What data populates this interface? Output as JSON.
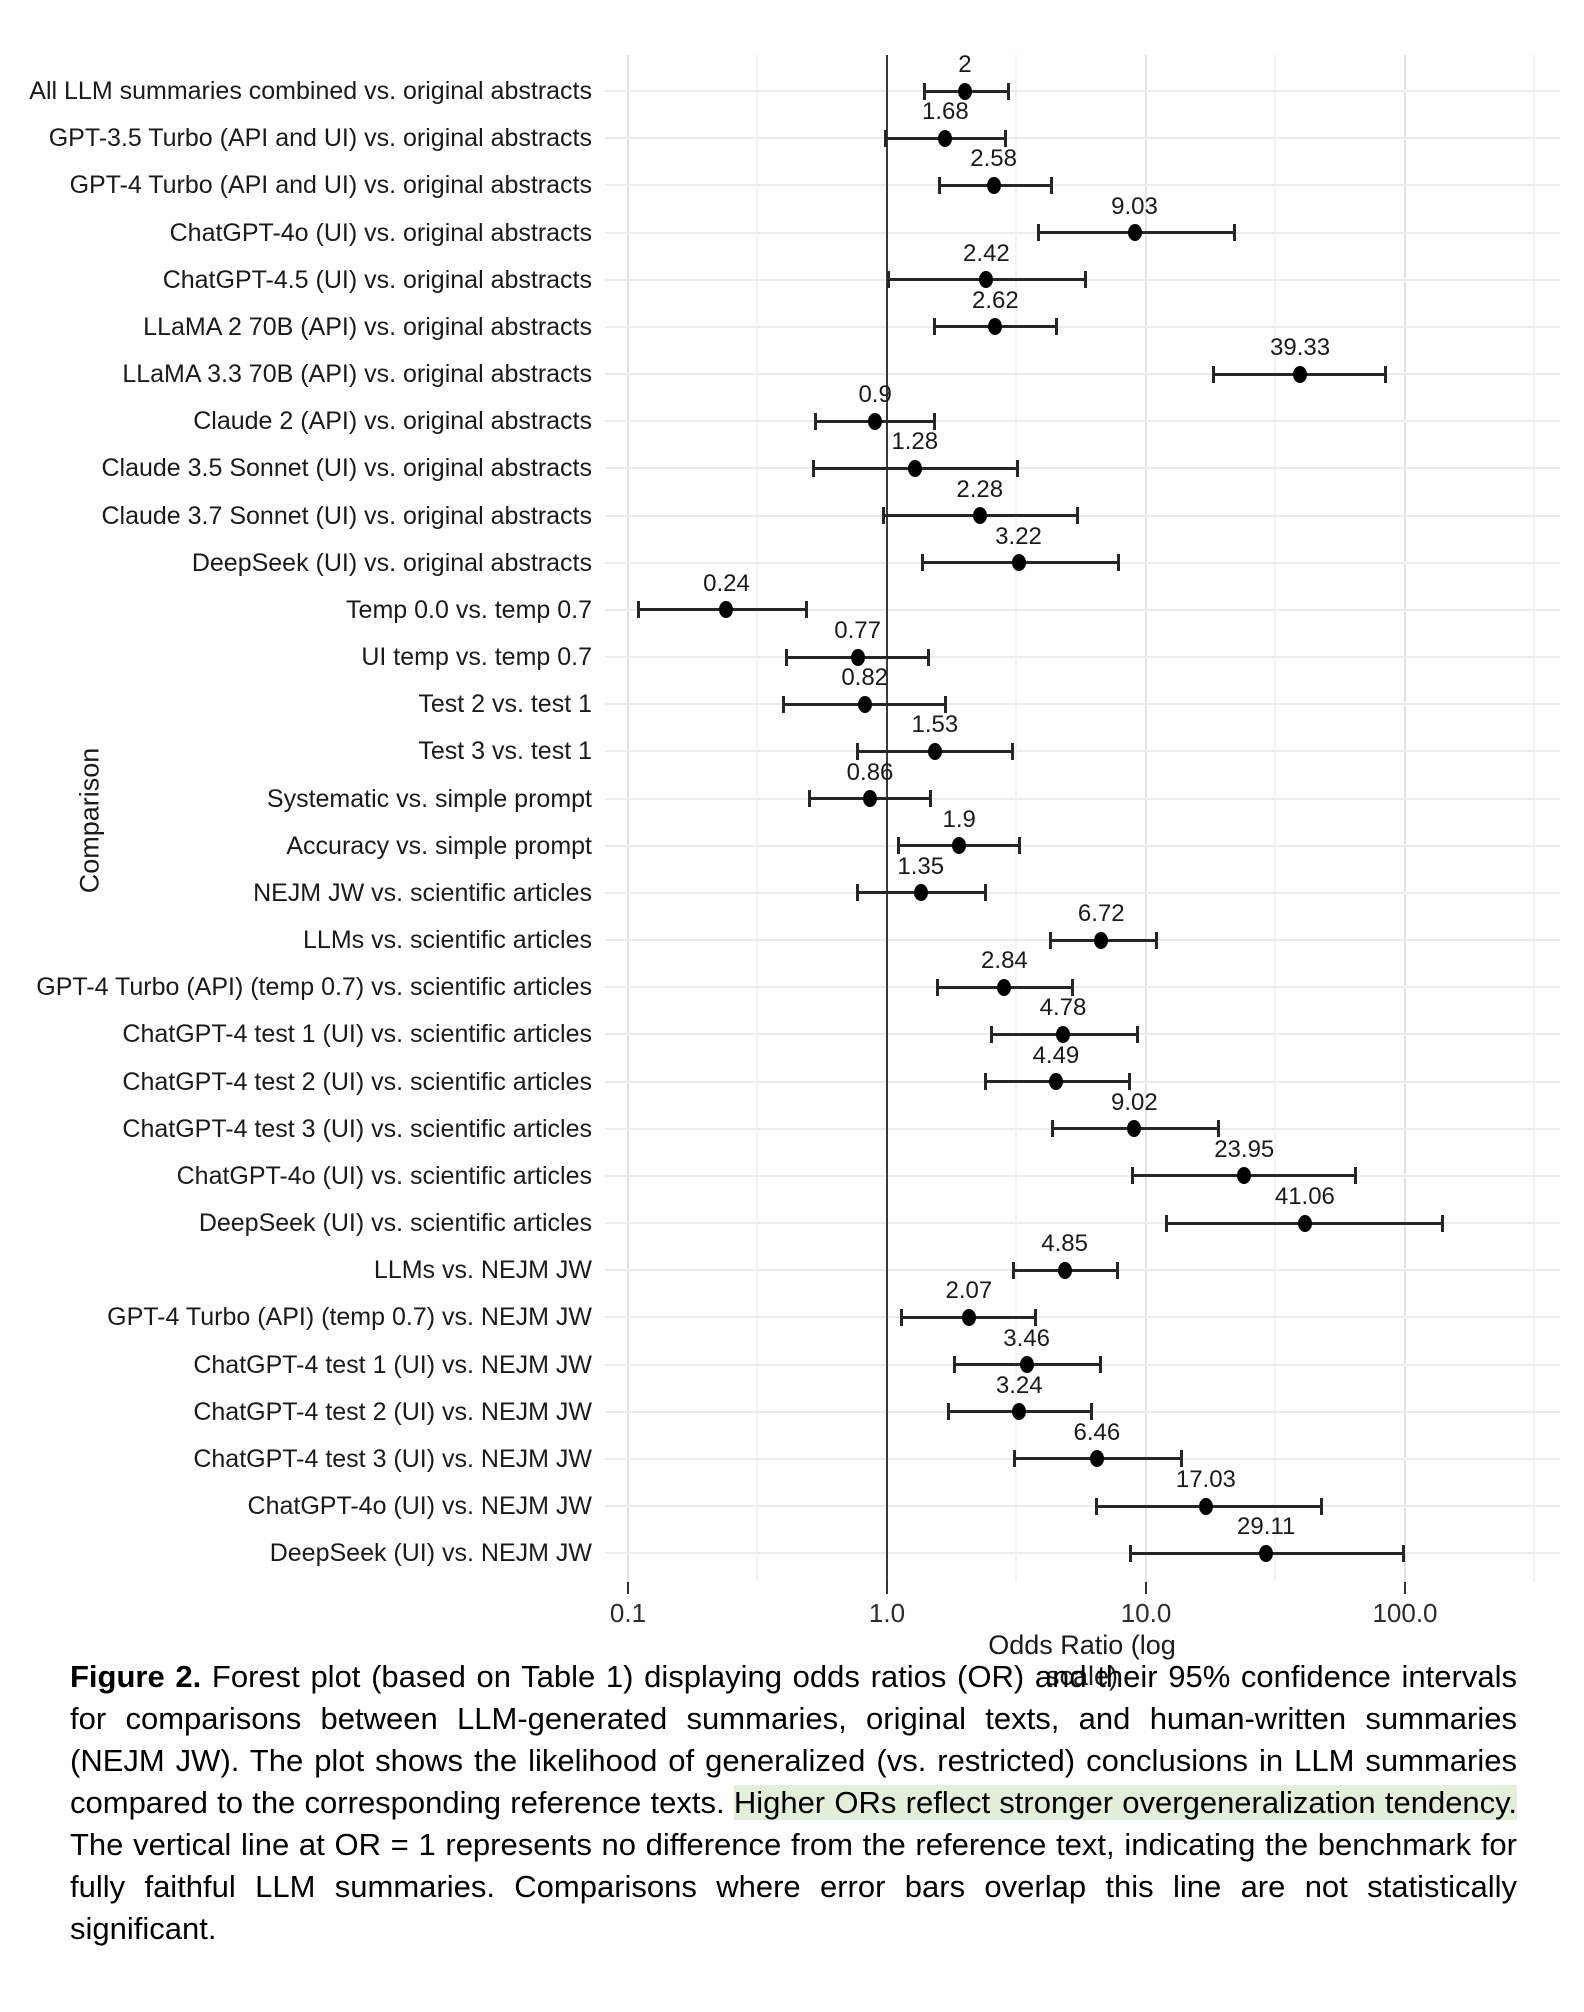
{
  "figure": {
    "caption": {
      "label": "Figure 2.",
      "text_before_highlight": " Forest plot (based on Table 1) displaying odds ratios (OR) and their 95% confidence intervals for comparisons between LLM-generated summaries, original texts, and human-written summaries (NEJM JW). The plot shows the likelihood of generalized (vs. restricted) conclusions in LLM summaries compared to the corresponding reference texts. ",
      "highlighted_text": "Higher ORs reflect stronger overgeneralization tendency.",
      "text_after_highlight": " The vertical line at OR = 1 represents no difference from the reference text, indicating the benchmark for fully faithful LLM summaries. Comparisons where error bars overlap this line are not statistically significant.",
      "highlight_color": "#e2efda"
    }
  },
  "chart_data": {
    "type": "scatter",
    "subtype": "forest-plot-with-horizontal-error-bars",
    "title": "",
    "xlabel": "Odds Ratio (log scale)",
    "ylabel": "Comparison",
    "x_scale": "log10",
    "x_ticks_labels": [
      "0.1",
      "1.0",
      "10.0",
      "100.0"
    ],
    "x_ticks_values": [
      0.1,
      1,
      10,
      100
    ],
    "x_minor_gridlines": [
      0.316,
      3.16,
      31.6,
      316
    ],
    "xlim": [
      0.08,
      400
    ],
    "reference_line_at": 1,
    "grid": "horizontal line per row; vertical major gridlines at decades with log-minor gridlines",
    "legend": "none",
    "colors": {
      "point": "#000000",
      "error_bar": "#262626",
      "reference_line": "#3a3a3a",
      "major_gridline": "#e3e3e3",
      "minor_gridline": "#f2f2f2",
      "row_gridline": "#ececec"
    },
    "rows": [
      {
        "label": "All LLM summaries combined vs. original abstracts",
        "or_label": "2",
        "or": 2,
        "ci_low": 1.39,
        "ci_high": 2.94
      },
      {
        "label": "GPT-3.5 Turbo (API and UI) vs. original abstracts",
        "or_label": "1.68",
        "or": 1.68,
        "ci_low": 0.99,
        "ci_high": 2.88
      },
      {
        "label": "GPT-4 Turbo (API and UI) vs. original abstracts",
        "or_label": "2.58",
        "or": 2.58,
        "ci_low": 1.59,
        "ci_high": 4.3
      },
      {
        "label": "ChatGPT-4o (UI) vs. original abstracts",
        "or_label": "9.03",
        "or": 9.03,
        "ci_low": 3.85,
        "ci_high": 21.9
      },
      {
        "label": "ChatGPT-4.5 (UI) vs. original abstracts",
        "or_label": "2.42",
        "or": 2.42,
        "ci_low": 1.01,
        "ci_high": 5.83
      },
      {
        "label": "LLaMA 2 70B (API) vs. original abstracts",
        "or_label": "2.62",
        "or": 2.62,
        "ci_low": 1.53,
        "ci_high": 4.53
      },
      {
        "label": "LLaMA 3.3 70B (API) vs. original abstracts",
        "or_label": "39.33",
        "or": 39.33,
        "ci_low": 18.3,
        "ci_high": 84.3
      },
      {
        "label": "Claude 2 (API) vs. original abstracts",
        "or_label": "0.9",
        "or": 0.9,
        "ci_low": 0.53,
        "ci_high": 1.53
      },
      {
        "label": "Claude 3.5 Sonnet (UI) vs. original abstracts",
        "or_label": "1.28",
        "or": 1.28,
        "ci_low": 0.52,
        "ci_high": 3.18
      },
      {
        "label": "Claude 3.7 Sonnet (UI) vs. original abstracts",
        "or_label": "2.28",
        "or": 2.28,
        "ci_low": 0.97,
        "ci_high": 5.46
      },
      {
        "label": "DeepSeek (UI) vs. original abstracts",
        "or_label": "3.22",
        "or": 3.22,
        "ci_low": 1.37,
        "ci_high": 7.8
      },
      {
        "label": "Temp 0.0 vs. temp 0.7",
        "or_label": "0.24",
        "or": 0.24,
        "ci_low": 0.11,
        "ci_high": 0.49
      },
      {
        "label": "UI temp vs. temp 0.7",
        "or_label": "0.77",
        "or": 0.77,
        "ci_low": 0.41,
        "ci_high": 1.44
      },
      {
        "label": "Test 2 vs. test 1",
        "or_label": "0.82",
        "or": 0.82,
        "ci_low": 0.4,
        "ci_high": 1.68
      },
      {
        "label": "Test 3 vs. test 1",
        "or_label": "1.53",
        "or": 1.53,
        "ci_low": 0.77,
        "ci_high": 3.05
      },
      {
        "label": "Systematic vs. simple prompt",
        "or_label": "0.86",
        "or": 0.86,
        "ci_low": 0.5,
        "ci_high": 1.47
      },
      {
        "label": "Accuracy vs. simple prompt",
        "or_label": "1.9",
        "or": 1.9,
        "ci_low": 1.11,
        "ci_high": 3.25
      },
      {
        "label": "NEJM JW vs. scientific articles",
        "or_label": "1.35",
        "or": 1.35,
        "ci_low": 0.77,
        "ci_high": 2.41
      },
      {
        "label": "LLMs vs. scientific articles",
        "or_label": "6.72",
        "or": 6.72,
        "ci_low": 4.28,
        "ci_high": 11.0
      },
      {
        "label": "GPT-4 Turbo (API) (temp 0.7) vs. scientific articles",
        "or_label": "2.84",
        "or": 2.84,
        "ci_low": 1.57,
        "ci_high": 5.22
      },
      {
        "label": "ChatGPT-4 test 1 (UI) vs. scientific articles",
        "or_label": "4.78",
        "or": 4.78,
        "ci_low": 2.53,
        "ci_high": 9.28
      },
      {
        "label": "ChatGPT-4 test 2 (UI) vs. scientific articles",
        "or_label": "4.49",
        "or": 4.49,
        "ci_low": 2.39,
        "ci_high": 8.6
      },
      {
        "label": "ChatGPT-4 test 3 (UI) vs. scientific articles",
        "or_label": "9.02",
        "or": 9.02,
        "ci_low": 4.34,
        "ci_high": 19.1
      },
      {
        "label": "ChatGPT-4o (UI) vs. scientific articles",
        "or_label": "23.95",
        "or": 23.95,
        "ci_low": 8.9,
        "ci_high": 64.6
      },
      {
        "label": "DeepSeek (UI) vs. scientific articles",
        "or_label": "41.06",
        "or": 41.06,
        "ci_low": 12.0,
        "ci_high": 140
      },
      {
        "label": "LLMs vs. NEJM JW",
        "or_label": "4.85",
        "or": 4.85,
        "ci_low": 3.07,
        "ci_high": 7.75
      },
      {
        "label": "GPT-4 Turbo (API) (temp 0.7) vs. NEJM JW",
        "or_label": "2.07",
        "or": 2.07,
        "ci_low": 1.14,
        "ci_high": 3.75
      },
      {
        "label": "ChatGPT-4 test 1 (UI) vs. NEJM JW",
        "or_label": "3.46",
        "or": 3.46,
        "ci_low": 1.83,
        "ci_high": 6.66
      },
      {
        "label": "ChatGPT-4 test 2 (UI) vs. NEJM JW",
        "or_label": "3.24",
        "or": 3.24,
        "ci_low": 1.73,
        "ci_high": 6.16
      },
      {
        "label": "ChatGPT-4 test 3 (UI) vs. NEJM JW",
        "or_label": "6.46",
        "or": 6.46,
        "ci_low": 3.12,
        "ci_high": 13.7
      },
      {
        "label": "ChatGPT-4o (UI) vs. NEJM JW",
        "or_label": "17.03",
        "or": 17.03,
        "ci_low": 6.43,
        "ci_high": 47.5
      },
      {
        "label": "DeepSeek (UI) vs. NEJM JW",
        "or_label": "29.11",
        "or": 29.11,
        "ci_low": 8.7,
        "ci_high": 99
      }
    ]
  }
}
